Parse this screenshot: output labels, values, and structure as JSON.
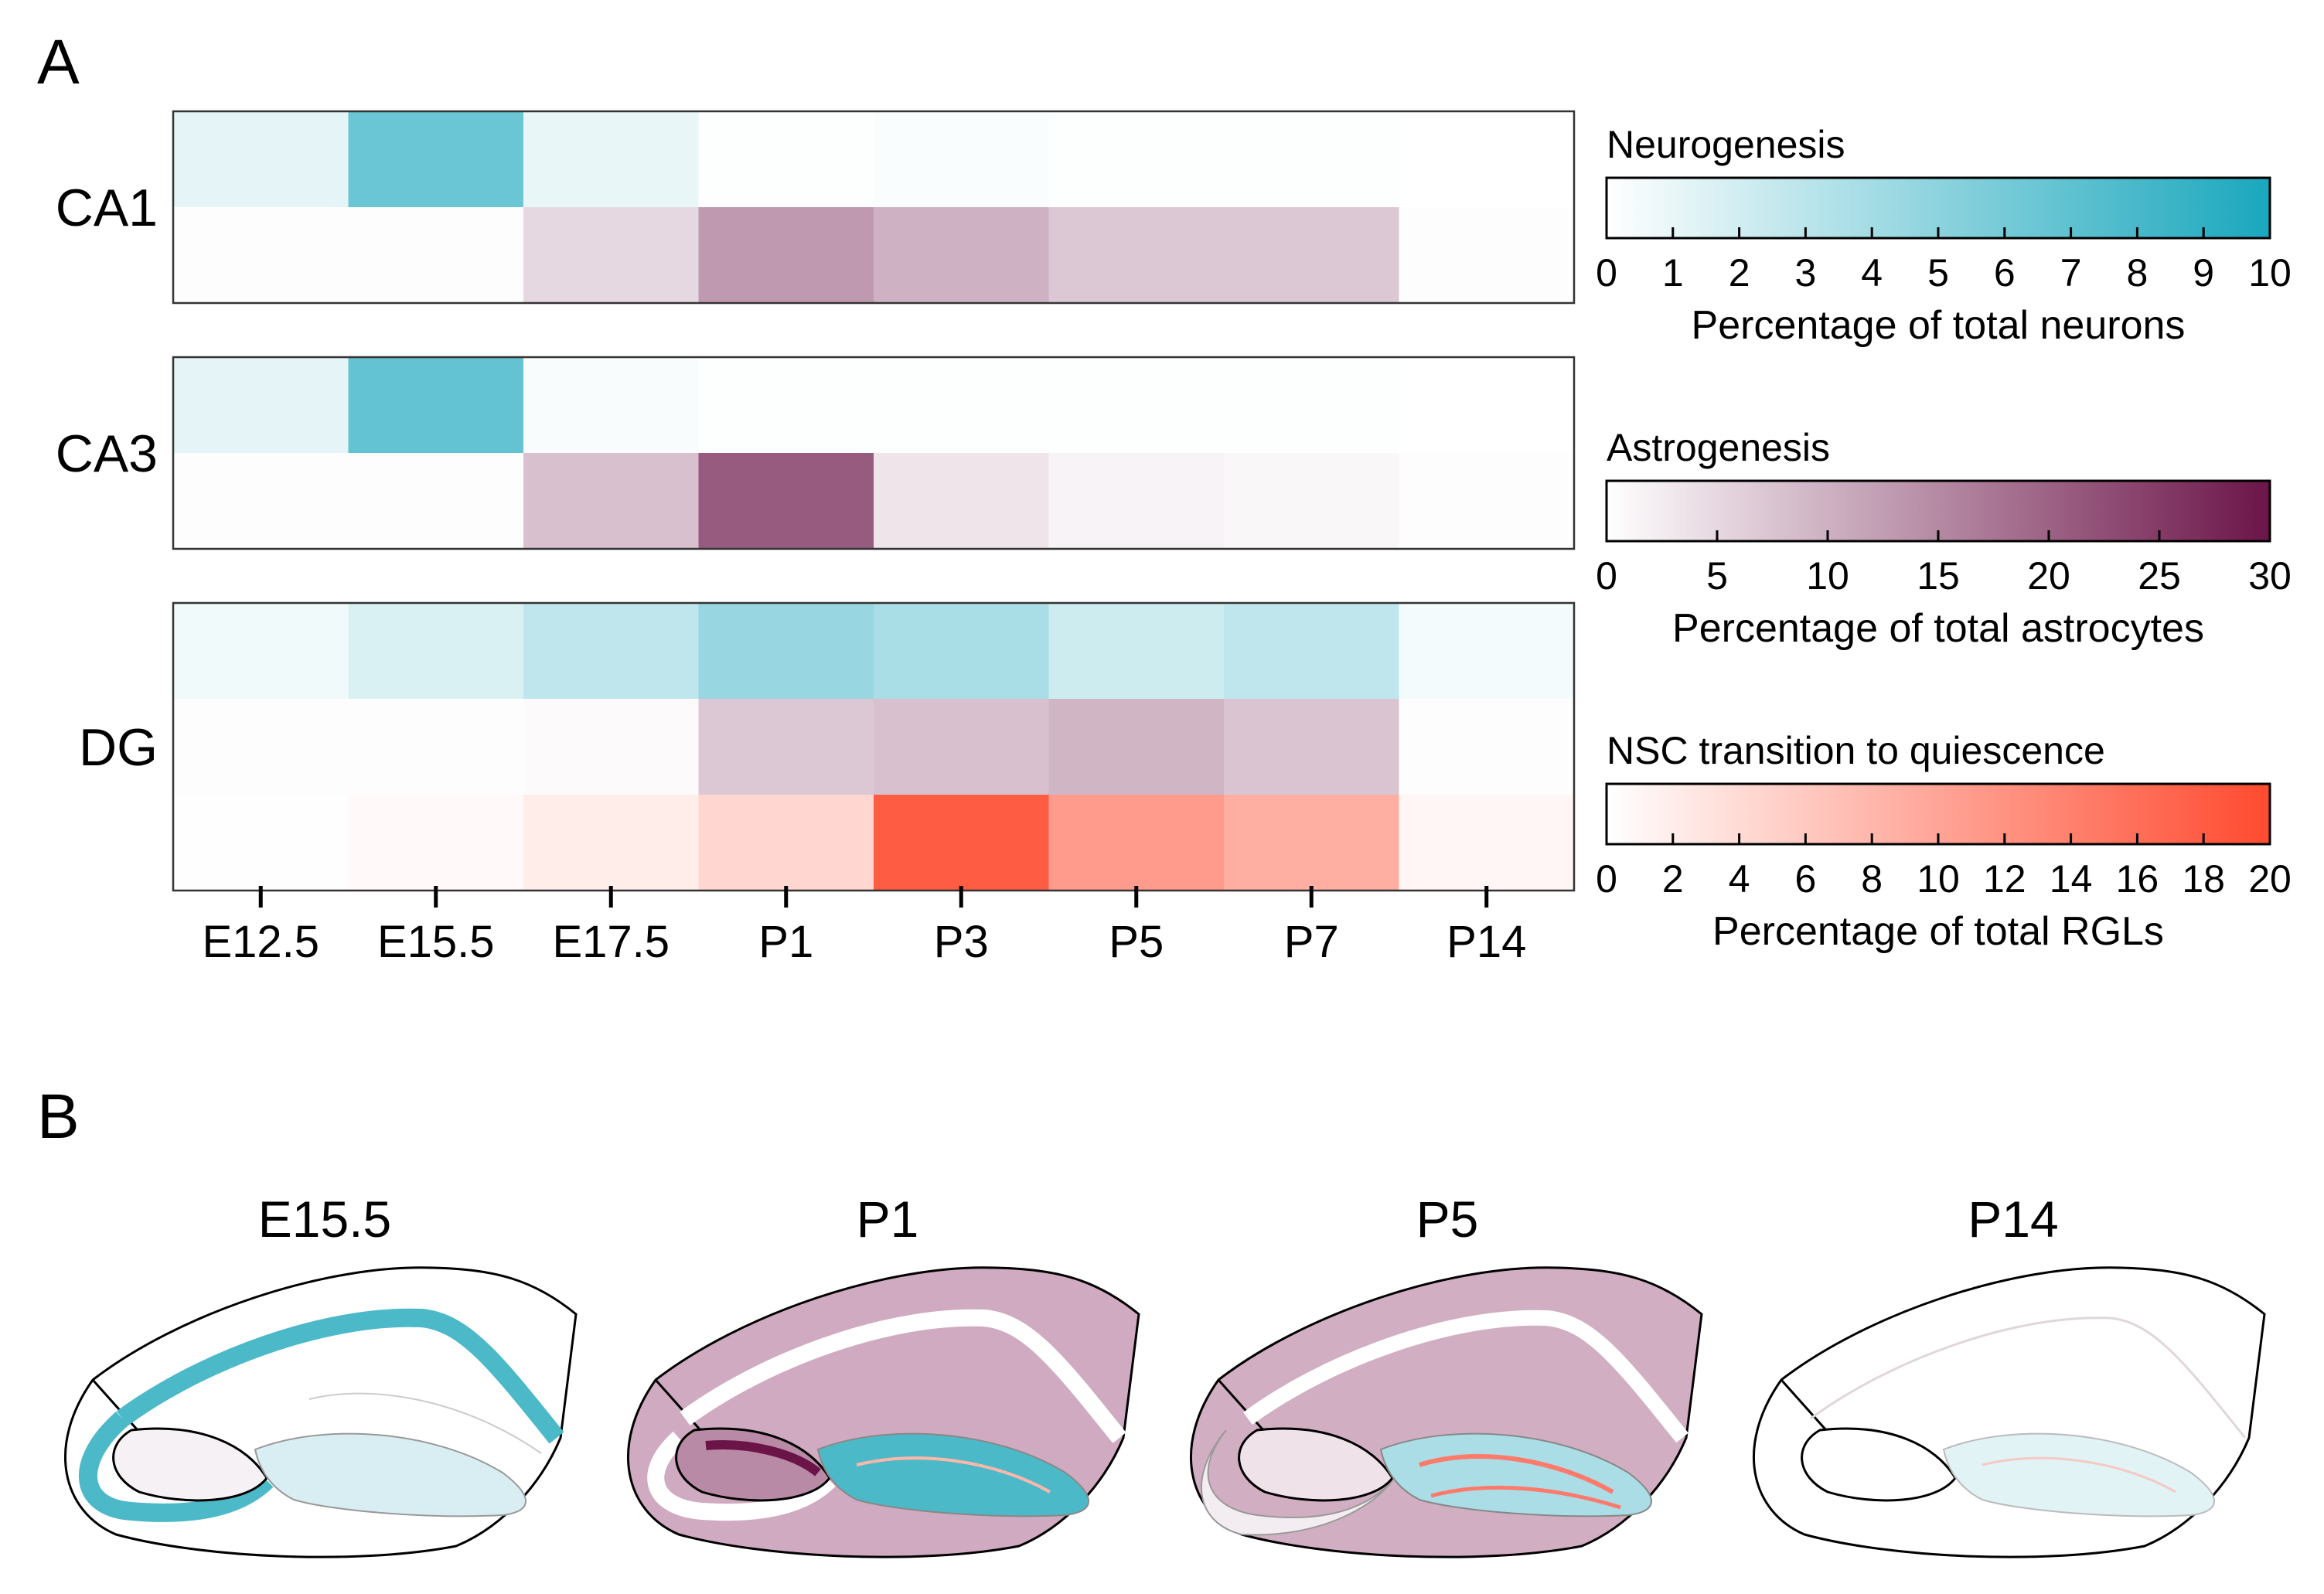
{
  "panels": {
    "a_label": "A",
    "b_label": "B"
  },
  "chart_data": {
    "type": "heatmap",
    "x_categories": [
      "E12.5",
      "E15.5",
      "E17.5",
      "P1",
      "P3",
      "P5",
      "P7",
      "P14"
    ],
    "blocks": [
      {
        "label": "CA1",
        "rows": [
          {
            "measure": "Neurogenesis",
            "values": [
              1.2,
              6.5,
              1.0,
              0.1,
              0.2,
              0.1,
              0.1,
              0.0
            ]
          },
          {
            "measure": "Astrogenesis",
            "values": [
              0.2,
              0.2,
              5.0,
              13.0,
              10.0,
              7.0,
              7.0,
              0.3
            ]
          }
        ]
      },
      {
        "label": "CA3",
        "rows": [
          {
            "measure": "Neurogenesis",
            "values": [
              1.2,
              6.8,
              0.3,
              0.1,
              0.1,
              0.1,
              0.1,
              0.0
            ]
          },
          {
            "measure": "Astrogenesis",
            "values": [
              0.2,
              0.2,
              8.0,
              21.0,
              3.5,
              1.5,
              1.0,
              0.2
            ]
          }
        ]
      },
      {
        "label": "DG",
        "rows": [
          {
            "measure": "Neurogenesis",
            "values": [
              0.6,
              1.6,
              2.8,
              4.5,
              3.7,
              2.2,
              2.8,
              0.5
            ]
          },
          {
            "measure": "Astrogenesis",
            "values": [
              0.2,
              0.2,
              0.6,
              7.0,
              8.0,
              9.5,
              7.5,
              0.3
            ]
          },
          {
            "measure": "NSC transition to quiescence",
            "values": [
              0.1,
              0.6,
              2.0,
              4.5,
              18.0,
              11.0,
              9.0,
              1.0
            ]
          }
        ]
      }
    ],
    "legends": [
      {
        "measure": "Neurogenesis",
        "title": "Neurogenesis",
        "label": "Percentage of total neurons",
        "range": [
          0,
          10
        ],
        "ticks": [
          "0",
          "1",
          "2",
          "3",
          "4",
          "5",
          "6",
          "7",
          "8",
          "9",
          "10"
        ],
        "color_low": "#ffffff",
        "color_high": "#1aa7bd"
      },
      {
        "measure": "Astrogenesis",
        "title": "Astrogenesis",
        "label": "Percentage of total astrocytes",
        "range": [
          0,
          30
        ],
        "ticks": [
          "0",
          "5",
          "10",
          "15",
          "20",
          "25",
          "30"
        ],
        "color_low": "#ffffff",
        "color_high": "#6b1448"
      },
      {
        "measure": "NSC transition to quiescence",
        "title": "NSC transition to quiescence",
        "label": "Percentage of total RGLs",
        "range": [
          0,
          20
        ],
        "ticks": [
          "0",
          "2",
          "4",
          "6",
          "8",
          "10",
          "12",
          "14",
          "16",
          "18",
          "20"
        ],
        "color_low": "#ffffff",
        "color_high": "#ff4a2f"
      }
    ]
  },
  "schematics": {
    "stages": [
      {
        "label": "E15.5",
        "band": "teal",
        "outer": "white",
        "ca_fill": "white",
        "dg": "light-teal"
      },
      {
        "label": "P1",
        "band": "white",
        "outer": "mauve",
        "ca_fill": "mauve",
        "dg": "teal"
      },
      {
        "label": "P5",
        "band": "white",
        "outer": "light-mauve",
        "ca_fill": "mauve",
        "dg": "light-teal"
      },
      {
        "label": "P14",
        "band": "none",
        "outer": "white",
        "ca_fill": "white",
        "dg": "pale-teal"
      }
    ],
    "colors": {
      "teal": "#4cb9c9",
      "light_teal": "#aadde6",
      "pale_teal": "#d8eef2",
      "mauve": "#c99fb6",
      "light_mauve": "#dcc3d1",
      "pale_mauve": "#efe2e9",
      "dark_plum": "#6b1448",
      "coral": "#ff7a6a"
    }
  }
}
